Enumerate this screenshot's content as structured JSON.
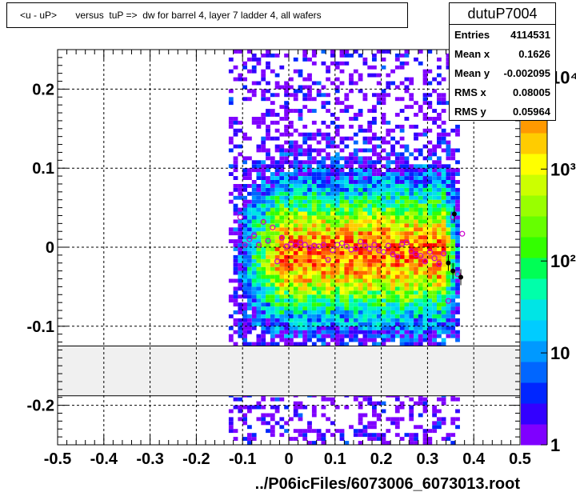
{
  "title": "<u - uP>       versus  tuP =>  dw for barrel 4, layer 7 ladder 4, all wafers",
  "stats": {
    "name": "dutuP7004",
    "rows": [
      {
        "label": "Entries",
        "value": "4114531"
      },
      {
        "label": "Mean x",
        "value": "0.1626"
      },
      {
        "label": "Mean y",
        "value": "-0.002095"
      },
      {
        "label": "RMS x",
        "value": "0.08005"
      },
      {
        "label": "RMS y",
        "value": "0.05964"
      }
    ]
  },
  "chart_data": {
    "type": "heatmap",
    "xlabel": "../P06icFiles/6073006_6073013.root",
    "xlim": [
      -0.5,
      0.5
    ],
    "ylim": [
      -0.25,
      0.25
    ],
    "x_ticks": [
      "-0.5",
      "-0.4",
      "-0.3",
      "-0.2",
      "-0.1",
      "0",
      "0.1",
      "0.2",
      "0.3",
      "0.4",
      "0.5"
    ],
    "y_ticks": [
      "-0.2",
      "-0.1",
      "0",
      "0.1",
      "0.2"
    ],
    "z_scale": "log",
    "z_ticks": [
      "1",
      "10",
      "10²",
      "10³",
      "10⁴"
    ],
    "grid": true,
    "blank_band_y": [
      -0.188,
      -0.125
    ],
    "colors": {
      "palette": [
        "#7f00ff",
        "#3300ff",
        "#0026ff",
        "#0066ff",
        "#0099ff",
        "#00ccff",
        "#00e5e5",
        "#00ffaa",
        "#00ff55",
        "#33ff00",
        "#66ff00",
        "#99ff00",
        "#ccff00",
        "#ffff00",
        "#ffcc00",
        "#ff9900",
        "#ff6600",
        "#ff3300",
        "#ff0000"
      ],
      "band": "#f0f0f0",
      "mean_marker": "#cc00cc",
      "point_marker": "#000000"
    },
    "density_model": {
      "x_core": [
        -0.02,
        0.33
      ],
      "x_tail": [
        -0.13,
        0.37
      ],
      "y_sigma": 0.055,
      "y_center": -0.01
    },
    "profile_series": {
      "name": "mean",
      "x": [
        -0.105,
        -0.095,
        -0.085,
        -0.075,
        -0.065,
        -0.055,
        -0.045,
        -0.035,
        -0.025,
        -0.015,
        -0.005,
        0.005,
        0.015,
        0.025,
        0.035,
        0.045,
        0.055,
        0.065,
        0.075,
        0.085,
        0.095,
        0.105,
        0.115,
        0.125,
        0.135,
        0.145,
        0.155,
        0.165,
        0.175,
        0.185,
        0.195,
        0.205,
        0.215,
        0.225,
        0.235,
        0.245,
        0.255,
        0.265,
        0.275,
        0.285,
        0.295,
        0.305,
        0.315,
        0.325,
        0.335,
        0.345,
        0.355,
        0.365,
        0.375
      ],
      "y": [
        0.038,
        0.003,
        0.01,
        0.015,
        0.003,
        0.032,
        0.008,
        0.025,
        -0.018,
        0.012,
        0.001,
        0.004,
        0.002,
        0.006,
        0.003,
        -0.001,
        0.002,
        0.001,
        0.003,
        -0.016,
        -0.004,
        0.003,
        0.005,
        0.001,
        -0.003,
        -0.002,
        0.007,
        0.002,
        -0.002,
        0.003,
        -0.004,
        -0.006,
        0.002,
        -0.009,
        -0.012,
        0.004,
        0.006,
        -0.005,
        -0.009,
        -0.011,
        -0.018,
        -0.006,
        -0.014,
        -0.021,
        -0.008,
        -0.068,
        0.038,
        -0.034,
        0.017
      ]
    },
    "black_points": {
      "x": [
        0.345,
        0.355,
        0.358,
        0.372
      ],
      "y": [
        -0.02,
        -0.03,
        0.042,
        -0.038
      ]
    }
  }
}
